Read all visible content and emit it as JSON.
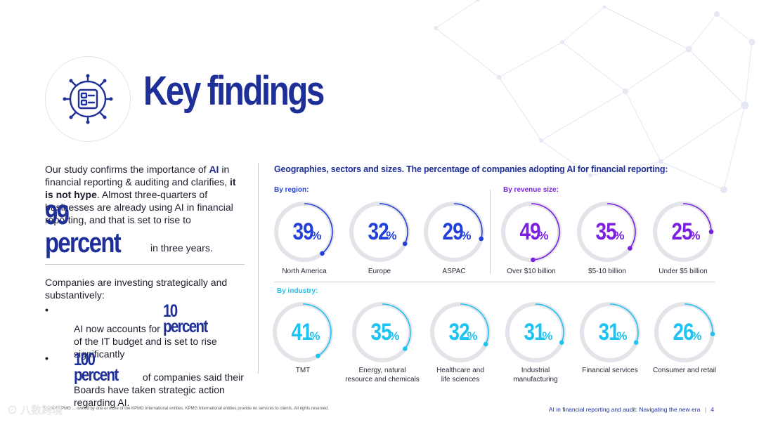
{
  "title": "Key findings",
  "intro": {
    "p1": "Our study confirms the importance of ",
    "ai_bold": "AI",
    "p2": " in financial reporting & auditing and clarifies, ",
    "hype_bold": "it is not hype",
    "p3": ". Almost three-quarters of businesses are already using AI in financial reporting, and that is set to rise to",
    "big_number": "99 percent",
    "big_suffix": "in three years."
  },
  "investing": {
    "lead": "Companies are investing strategically and substantively:",
    "bullets": [
      {
        "pre": "AI now accounts for ",
        "big": "10 percent",
        "post": "of the IT budget and is set to rise significantly"
      },
      {
        "pre": "",
        "big": "100 percent",
        "post": " of companies said their Boards have taken strategic action regarding AI."
      }
    ],
    "bullet_char": "•"
  },
  "heading": "Geographies, sectors and sizes. The percentage of companies adopting AI for financial reporting:",
  "groups": {
    "region": "By region:",
    "revenue": "By revenue size:",
    "industry": "By industry:"
  },
  "colors": {
    "navy": "#1e2f97",
    "region": "#2340d8",
    "revenue": "#7b1fe0",
    "industry": "#1ec3f2",
    "track": "#e3e4e9"
  },
  "chart_data": {
    "type": "donut",
    "unit": "%",
    "series": [
      {
        "name": "By region",
        "categories": [
          "North America",
          "Europe",
          "ASPAC"
        ],
        "values": [
          39,
          32,
          29
        ]
      },
      {
        "name": "By revenue size",
        "categories": [
          "Over $10 billion",
          "$5-10 billion",
          "Under $5 billion"
        ],
        "values": [
          49,
          35,
          25
        ]
      },
      {
        "name": "By industry",
        "categories": [
          "TMT",
          "Energy, natural resource and chemicals",
          "Healthcare and life sciences",
          "Industrial manufacturing",
          "Financial services",
          "Consumer and retail"
        ],
        "values": [
          41,
          35,
          32,
          31,
          31,
          26
        ]
      }
    ]
  },
  "footer": {
    "left": "© 2024 KPMG ... owned by one or more of the KPMG International entities. KPMG International entities provide no services to clients. All rights reserved.",
    "right": "AI in financial reporting and audit: Navigating the new era",
    "page_number": "4"
  },
  "watermark": "八数跨境"
}
